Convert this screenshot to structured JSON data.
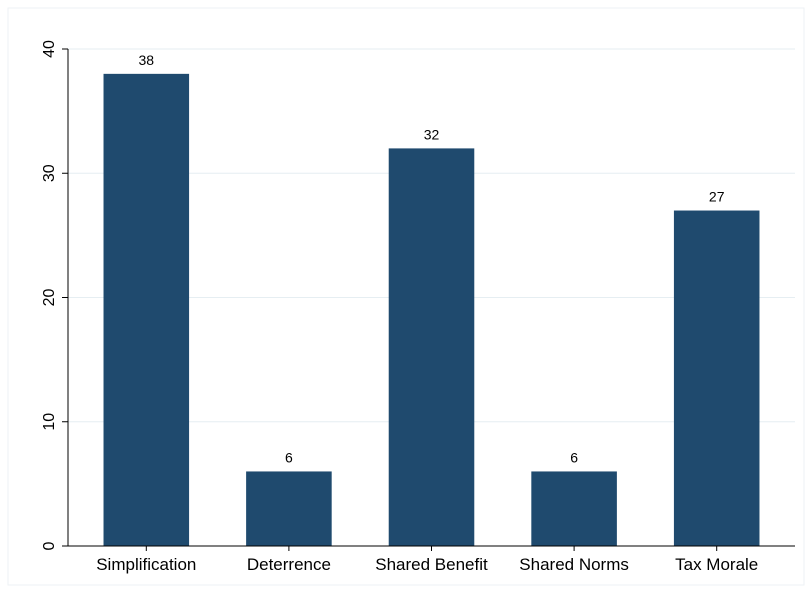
{
  "chart_data": {
    "type": "bar",
    "title": "",
    "xlabel": "",
    "ylabel": "",
    "categories": [
      "Simplification",
      "Deterrence",
      "Shared Benefit",
      "Shared Norms",
      "Tax Morale"
    ],
    "values": [
      38,
      6,
      32,
      6,
      27
    ],
    "data_labels": [
      "38",
      "6",
      "32",
      "6",
      "27"
    ],
    "ylim": [
      0,
      40
    ],
    "yticks": [
      0,
      10,
      20,
      30,
      40
    ],
    "ytick_labels": [
      "0",
      "10",
      "20",
      "30",
      "40"
    ],
    "grid": true,
    "legend": "none",
    "colors": {
      "bar": "#1f4a6e",
      "grid": "#e6eef2",
      "axis": "#000000",
      "frame": "#eef2f4"
    }
  }
}
